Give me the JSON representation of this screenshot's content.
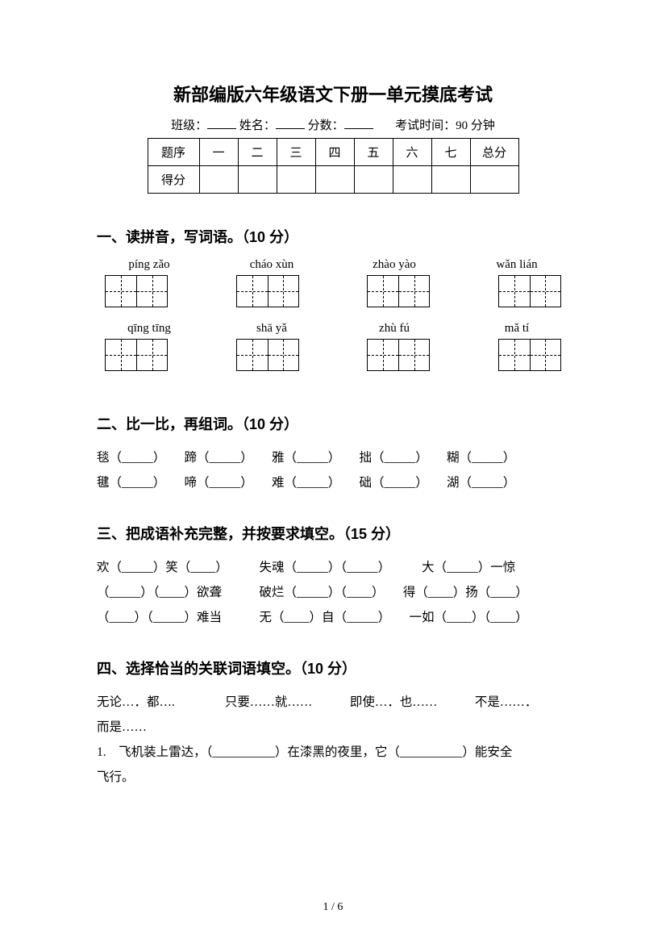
{
  "title": "新部编版六年级语文下册一单元摸底考试",
  "meta": {
    "class_label": "班级：",
    "name_label": "姓名：",
    "score_label": "分数：",
    "time_label": "考试时间：90 分钟"
  },
  "score_table": {
    "row_label": "题序",
    "cols": [
      "一",
      "二",
      "三",
      "四",
      "五",
      "六",
      "七"
    ],
    "total": "总分",
    "score_row_label": "得分"
  },
  "sec1": {
    "heading": "一、读拼音，写词语。（10 分）",
    "row1": [
      "píng zǎo",
      "cháo xùn",
      "zhào yào",
      "wǎn lián"
    ],
    "cells1": [
      2,
      2,
      2,
      2
    ],
    "row2": [
      "qīng tīng",
      "shā yǎ",
      "zhù fú",
      "mǎ tí"
    ],
    "cells2": [
      2,
      2,
      2,
      2
    ]
  },
  "sec2": {
    "heading": "二、比一比，再组词。（10 分）",
    "line1": "毯（_____）　　蹄（_____）　　雅（_____）　　拙（_____）　　糊（_____）",
    "line2": "毽（_____）　　啼（_____）　　难（_____）　　础（_____）　　湖（_____）"
  },
  "sec3": {
    "heading": "三、把成语补充完整，并按要求填空。（15 分）",
    "line1": "欢（_____）笑（____）　　　失魂（_____）（_____）　　　大（_____）一惊",
    "line2": "（_____）（____）欲聋　　　破烂（_____）（____）　　得（____）扬（____）",
    "line3": "（____）（_____）难当　　　无（____）自（_____）　　一如（____）（____）"
  },
  "sec4": {
    "heading": "四、选择恰当的关联词语填空。（10 分）",
    "options": "无论…．都….　　　　只要……就……　　　即使…．也……　　　不是……．",
    "options2": "而是……",
    "q1": "1.　飞机装上雷达，（__________）在漆黑的夜里，它（__________）能安全",
    "q1b": "飞行。"
  },
  "page_num": "1 / 6"
}
